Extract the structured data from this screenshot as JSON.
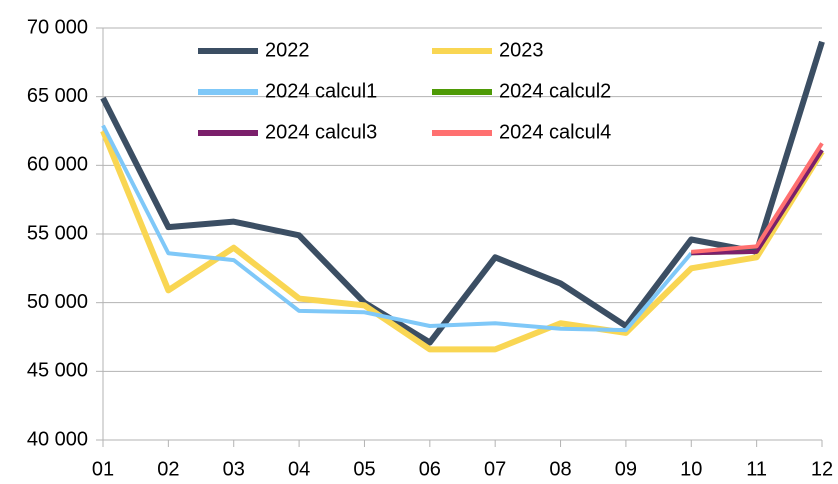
{
  "chart_data": {
    "type": "line",
    "categories": [
      "01",
      "02",
      "03",
      "04",
      "05",
      "06",
      "07",
      "08",
      "09",
      "10",
      "11",
      "12"
    ],
    "series": [
      {
        "name": "2022",
        "color": "#3b4e63",
        "values": [
          64900,
          55500,
          55900,
          54900,
          50000,
          47100,
          53300,
          51400,
          48300,
          54600,
          53700,
          69000
        ]
      },
      {
        "name": "2023",
        "color": "#f9d653",
        "values": [
          62500,
          50900,
          54000,
          50300,
          49800,
          46600,
          46600,
          48500,
          47800,
          52500,
          53300,
          61000
        ]
      },
      {
        "name": "2024 calcul1",
        "color": "#7fc8f8",
        "values": [
          62900,
          53600,
          53100,
          49400,
          49300,
          48300,
          48500,
          48100,
          48000,
          53600,
          null,
          null
        ]
      },
      {
        "name": "2024 calcul2",
        "color": "#4e9a06",
        "values": [
          null,
          null,
          null,
          null,
          null,
          null,
          null,
          null,
          null,
          53600,
          53700,
          61100
        ]
      },
      {
        "name": "2024 calcul3",
        "color": "#7b1f6b",
        "values": [
          null,
          null,
          null,
          null,
          null,
          null,
          null,
          null,
          null,
          53600,
          53700,
          61100
        ]
      },
      {
        "name": "2024 calcul4",
        "color": "#ff7070",
        "values": [
          null,
          null,
          null,
          null,
          null,
          null,
          null,
          null,
          null,
          53700,
          54100,
          61600
        ]
      }
    ],
    "ylim": [
      40000,
      70000
    ],
    "yticks": [
      {
        "value": 40000,
        "label": "40 000"
      },
      {
        "value": 45000,
        "label": "45 000"
      },
      {
        "value": 50000,
        "label": "50 000"
      },
      {
        "value": 55000,
        "label": "55 000"
      },
      {
        "value": 60000,
        "label": "60 000"
      },
      {
        "value": 65000,
        "label": "65 000"
      },
      {
        "value": 70000,
        "label": "70 000"
      }
    ],
    "grid": true
  }
}
